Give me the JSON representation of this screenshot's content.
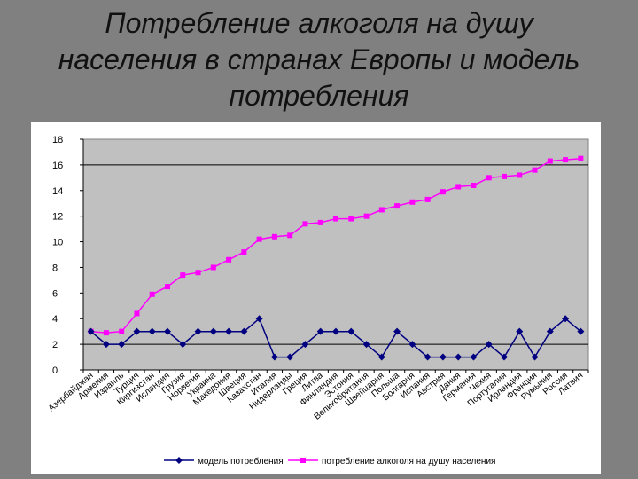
{
  "slide": {
    "title_lines": [
      "Потребление алкоголя на душу",
      "населения в странах Европы и модель",
      "потребления"
    ]
  },
  "chart_data": {
    "type": "line",
    "title": "",
    "xlabel": "",
    "ylabel": "",
    "ylim": [
      0,
      18
    ],
    "yticks": [
      0,
      2,
      4,
      6,
      8,
      10,
      12,
      14,
      16,
      18
    ],
    "grid": "horizontal lines at 2 and 16",
    "plot_background": "#c0c0c0",
    "legend_position": "bottom",
    "categories": [
      "Азербайджан",
      "Армения",
      "Израиль",
      "Турция",
      "Киргизстан",
      "Исландия",
      "Грузия",
      "Норвегия",
      "Украина",
      "Македония",
      "Швеция",
      "Казахстан",
      "Италия",
      "Нидерланды",
      "Греция",
      "Литва",
      "Финляндия",
      "Эстония",
      "Великобритания",
      "Швейцария",
      "Польша",
      "Болгария",
      "Испания",
      "Австрия",
      "Дания",
      "Германия",
      "Чехия",
      "Португалия",
      "Ирландия",
      "Франция",
      "Румыния",
      "Россия",
      "Латвия"
    ],
    "series": [
      {
        "name": "модель потребления",
        "color": "#000080",
        "marker": "diamond",
        "values": [
          3,
          2,
          2,
          3,
          3,
          3,
          2,
          3,
          3,
          3,
          3,
          4,
          1,
          1,
          2,
          3,
          3,
          3,
          2,
          1,
          3,
          2,
          1,
          1,
          1,
          1,
          2,
          1,
          3,
          1,
          3,
          4,
          3
        ]
      },
      {
        "name": "потребление алкоголя на душу населения",
        "color": "#ff00ff",
        "marker": "square",
        "values": [
          3.0,
          2.9,
          3.0,
          4.4,
          5.9,
          6.5,
          7.4,
          7.6,
          8.0,
          8.6,
          9.2,
          10.2,
          10.4,
          10.5,
          11.4,
          11.5,
          11.8,
          11.8,
          12.0,
          12.5,
          12.8,
          13.1,
          13.3,
          13.9,
          14.3,
          14.4,
          15.0,
          15.1,
          15.2,
          15.6,
          16.3,
          16.4,
          16.5
        ]
      }
    ]
  }
}
